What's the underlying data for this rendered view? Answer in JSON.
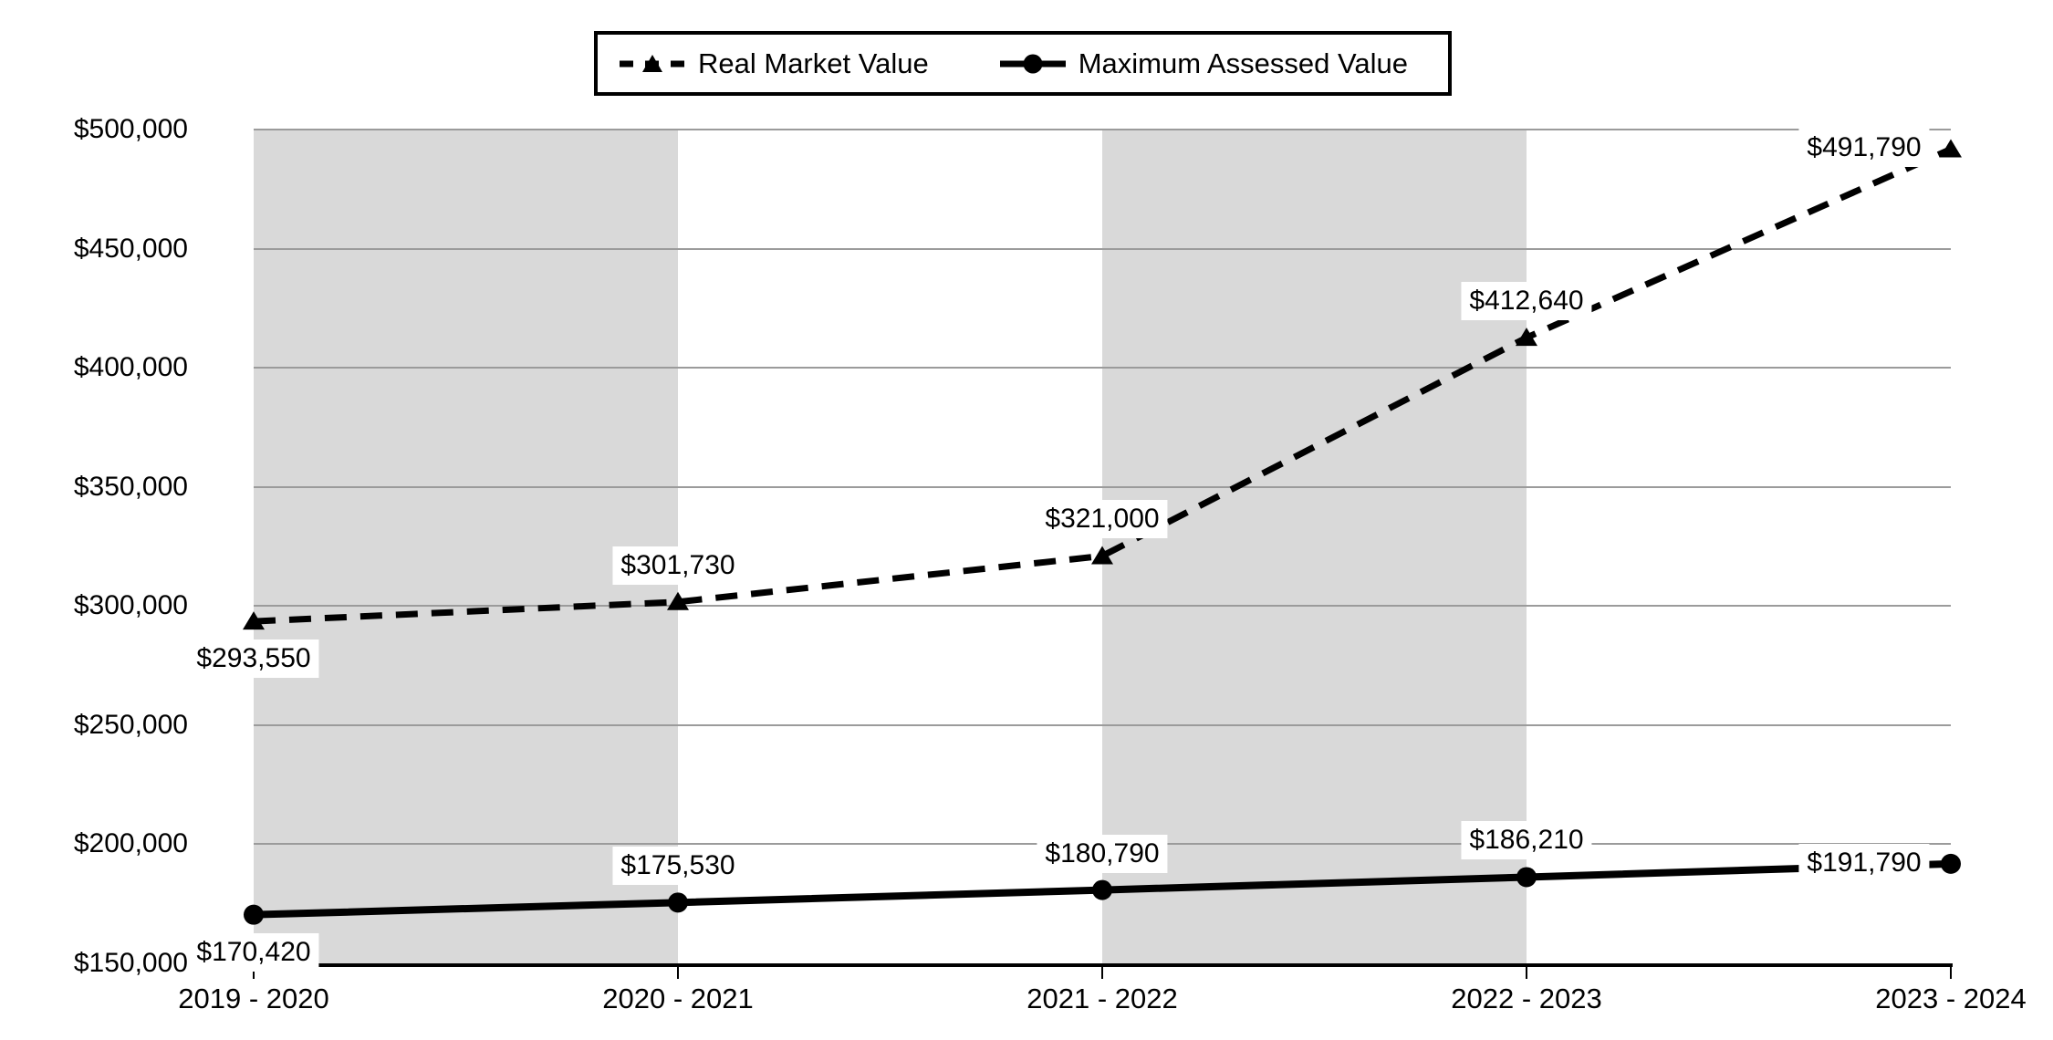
{
  "chart_data": {
    "type": "line",
    "title": "",
    "categories": [
      "2019 - 2020",
      "2020 - 2021",
      "2021 - 2022",
      "2022 - 2023",
      "2023 - 2024"
    ],
    "series": [
      {
        "name": "Real Market Value",
        "marker": "triangle",
        "line_style": "dashed",
        "values": [
          293550,
          301730,
          321000,
          412640,
          491790
        ],
        "labels": [
          "$293,550",
          "$301,730",
          "$321,000",
          "$412,640",
          "$491,790"
        ],
        "label_placements": [
          "below",
          "above",
          "above",
          "above",
          "left"
        ]
      },
      {
        "name": "Maximum Assessed Value",
        "marker": "circle",
        "line_style": "solid",
        "values": [
          170420,
          175530,
          180790,
          186210,
          191790
        ],
        "labels": [
          "$170,420",
          "$175,530",
          "$180,790",
          "$186,210",
          "$191,790"
        ],
        "label_placements": [
          "below",
          "above",
          "above",
          "above",
          "left"
        ]
      }
    ],
    "y_axis": {
      "min": 150000,
      "max": 500000,
      "tick_step": 50000,
      "tick_labels": [
        "$500,000",
        "$450,000",
        "$400,000",
        "$350,000",
        "$300,000",
        "$250,000",
        "$200,000",
        "$150,000"
      ]
    },
    "x_axis": {
      "tick_labels": [
        "2019 - 2020",
        "2020 - 2021",
        "2021 - 2022",
        "2022 - 2023",
        "2023 - 2024"
      ]
    },
    "grid": true,
    "shaded_intervals": [
      [
        0,
        1
      ],
      [
        2,
        3
      ]
    ],
    "legend": {
      "position": "top",
      "border": true
    },
    "colors": {
      "series": "#000000",
      "gridline": "#9b9b9b",
      "band": "#d9d9d9",
      "background": "#ffffff",
      "label_background": "#ffffff",
      "text": "#000000"
    }
  }
}
